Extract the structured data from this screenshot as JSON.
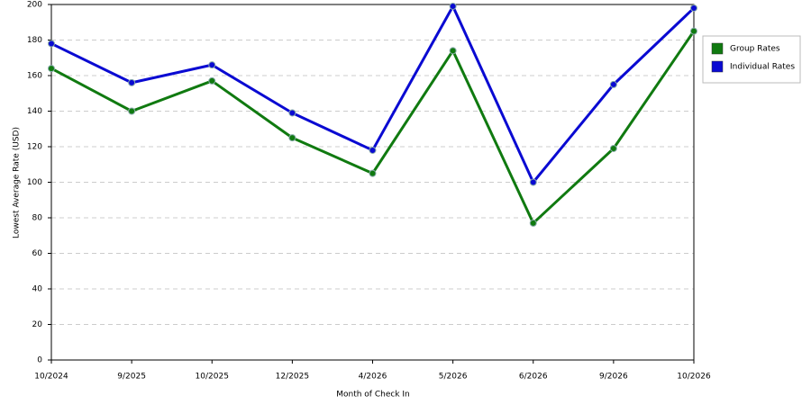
{
  "chart_data": {
    "type": "line",
    "x_label": "Month of Check In",
    "y_label": "Lowest Average Rate (USD)",
    "categories": [
      "10/2024",
      "9/2025",
      "10/2025",
      "12/2025",
      "4/2026",
      "5/2026",
      "6/2026",
      "9/2026",
      "10/2026"
    ],
    "series": [
      {
        "name": "Group Rates",
        "color": "#107a10",
        "values": [
          164,
          140,
          157,
          125,
          105,
          174,
          77,
          119,
          185
        ]
      },
      {
        "name": "Individual Rates",
        "color": "#0a0ad2",
        "values": [
          178,
          156,
          166,
          139,
          118,
          199,
          100,
          155,
          198
        ]
      }
    ],
    "ylim": [
      0,
      200
    ],
    "yticks": [
      0,
      20,
      40,
      60,
      80,
      100,
      120,
      140,
      160,
      180,
      200
    ],
    "grid": true,
    "legend": "right"
  }
}
